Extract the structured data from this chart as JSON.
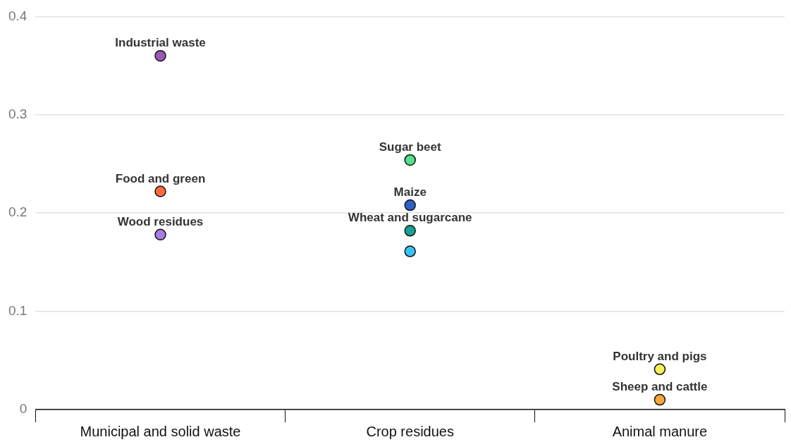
{
  "chart_data": {
    "type": "scatter",
    "categories": [
      "Municipal and solid waste",
      "Crop residues",
      "Animal manure"
    ],
    "series": [
      {
        "name": "Industrial waste",
        "color": "#9b59b6",
        "x": [
          "Municipal and solid waste"
        ],
        "values": [
          0.36
        ]
      },
      {
        "name": "Food and green",
        "color": "#ff6b3d",
        "x": [
          "Municipal and solid waste"
        ],
        "values": [
          0.222
        ]
      },
      {
        "name": "Wood residues",
        "color": "#a97de6",
        "x": [
          "Municipal and solid waste"
        ],
        "values": [
          0.178
        ]
      },
      {
        "name": "Sugar beet",
        "color": "#50e388",
        "x": [
          "Crop residues"
        ],
        "values": [
          0.254
        ]
      },
      {
        "name": "Maize",
        "color": "#2f62c9",
        "x": [
          "Crop residues"
        ],
        "values": [
          0.208
        ]
      },
      {
        "name": "Wheat and sugarcane",
        "colors": [
          "#14a394",
          "#35c3f2"
        ],
        "x": [
          "Crop residues",
          "Crop residues"
        ],
        "values": [
          0.182,
          0.161
        ]
      },
      {
        "name": "Poultry and pigs",
        "color": "#f7ef55",
        "x": [
          "Animal manure"
        ],
        "values": [
          0.041
        ]
      },
      {
        "name": "Sheep and cattle",
        "color": "#f2a93b",
        "x": [
          "Animal manure"
        ],
        "values": [
          0.01
        ]
      }
    ],
    "ylim": [
      0,
      0.4
    ],
    "yticks": [
      0,
      0.1,
      0.2,
      0.3,
      0.4
    ],
    "grid": "y",
    "legend": false,
    "marker": "circle"
  }
}
